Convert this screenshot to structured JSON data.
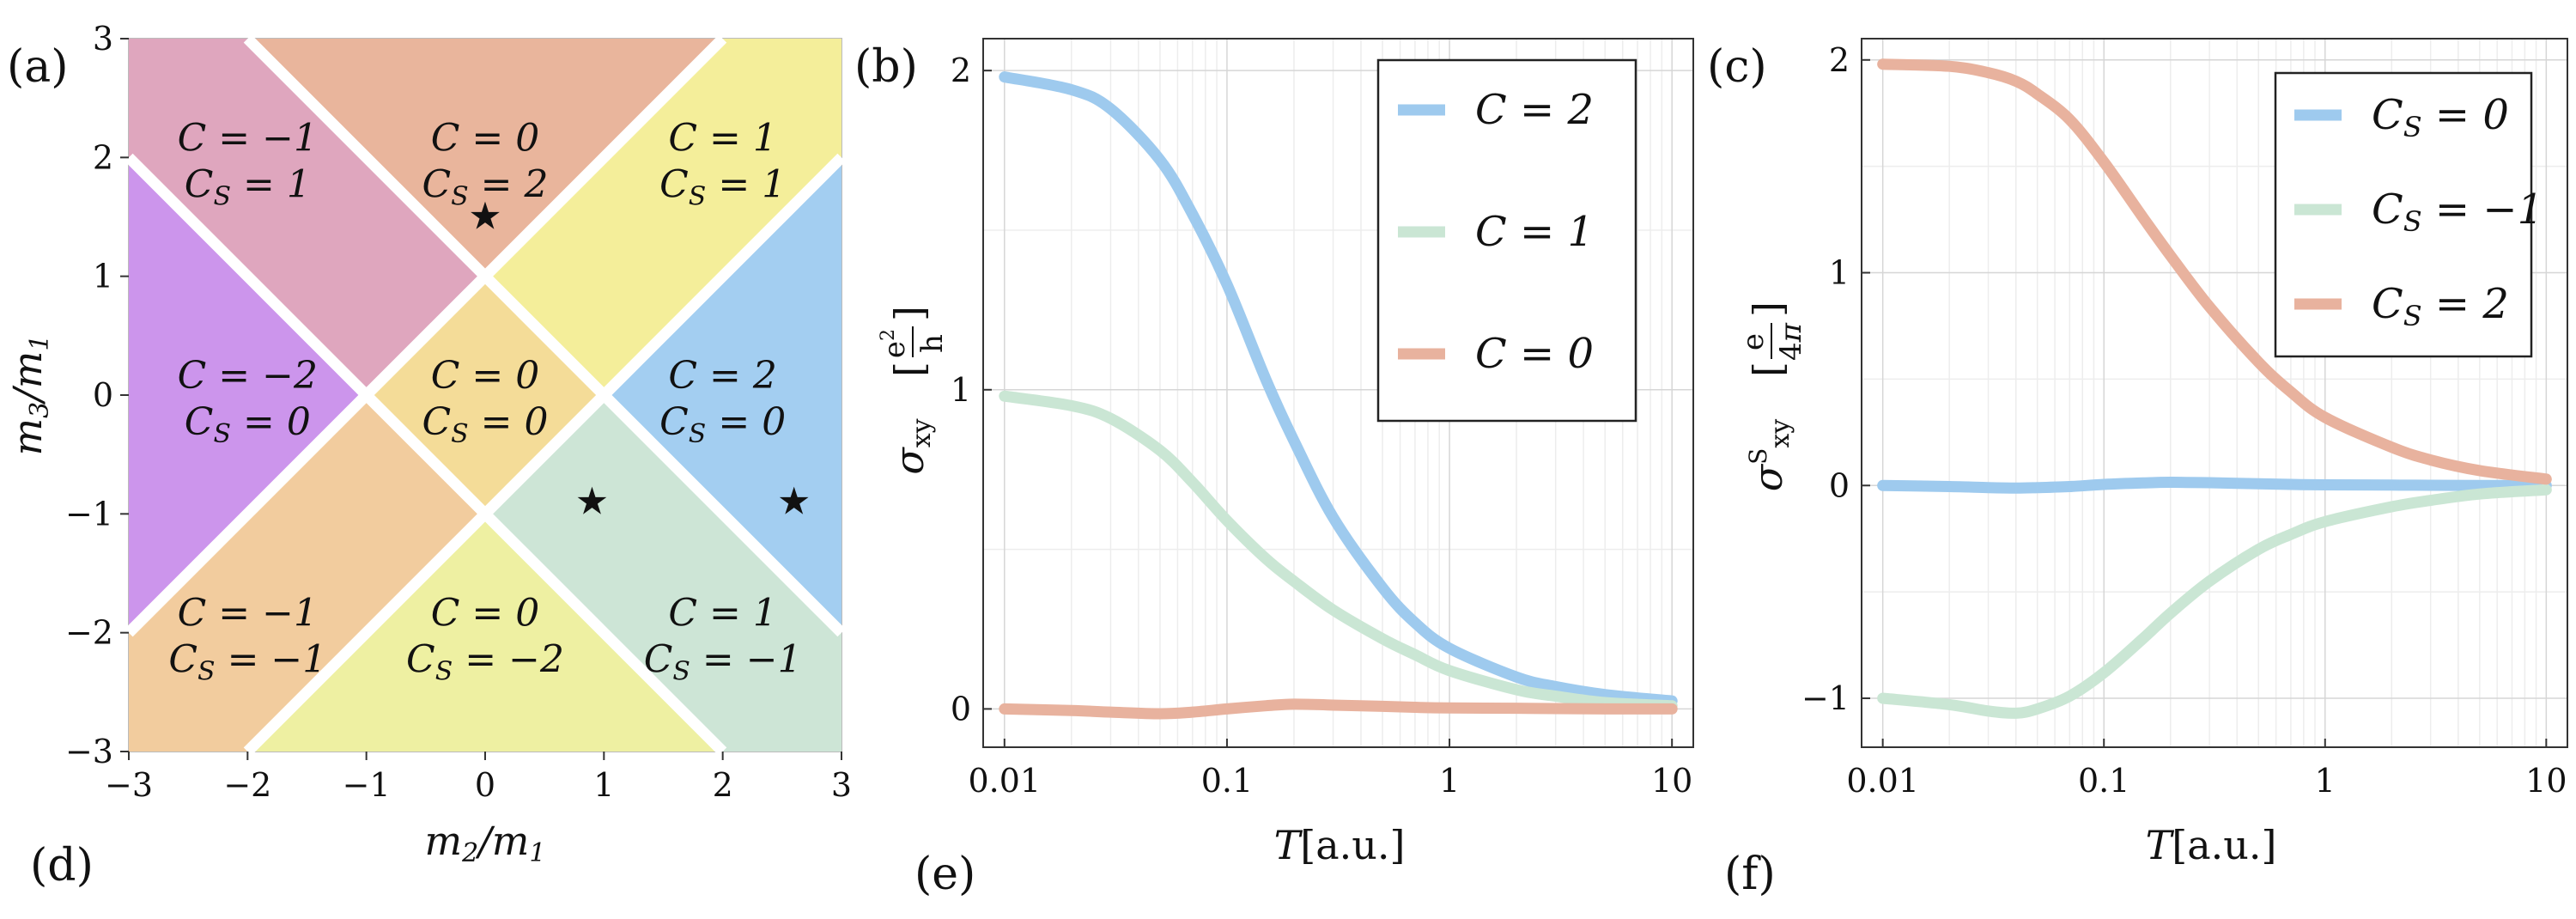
{
  "panel_letters": [
    "(a)",
    "(b)",
    "(c)",
    "(d)",
    "(e)",
    "(f)"
  ],
  "chart_data": [
    {
      "type": "heatmap",
      "panel": "(a)",
      "xlabel": "m2/m1",
      "ylabel": "m3/m1",
      "xlim": [
        -3,
        3
      ],
      "ylim": [
        -3,
        3
      ],
      "xticks": [
        "−3",
        "−2",
        "−1",
        "0",
        "1",
        "2",
        "3"
      ],
      "yticks": [
        "−3",
        "−2",
        "−1",
        "0",
        "1",
        "2",
        "3"
      ],
      "regions": [
        {
          "C": "C = −1",
          "CS": "CS = 1",
          "color": "#DFA6BE",
          "label_at": [
            -2,
            2
          ]
        },
        {
          "C": "C = 0",
          "CS": "CS = 2",
          "color": "#E9B59C",
          "label_at": [
            0,
            2
          ]
        },
        {
          "C": "C = 1",
          "CS": "CS = 1",
          "color": "#F4EE9A",
          "label_at": [
            2,
            2
          ]
        },
        {
          "C": "C = −2",
          "CS": "CS = 0",
          "color": "#CC95EC",
          "label_at": [
            -2,
            0
          ]
        },
        {
          "C": "C = 0",
          "CS": "CS = 0",
          "color": "#F4DC98",
          "label_at": [
            0,
            0
          ]
        },
        {
          "C": "C = 2",
          "CS": "CS = 0",
          "color": "#A3CEF1",
          "label_at": [
            2,
            0
          ]
        },
        {
          "C": "C = −1",
          "CS": "CS = −1",
          "color": "#F2CC9E",
          "label_at": [
            -2,
            -2
          ]
        },
        {
          "C": "C = 0",
          "CS": "CS = −2",
          "color": "#EEF0A2",
          "label_at": [
            0,
            -2
          ]
        },
        {
          "C": "C = 1",
          "CS": "CS = −1",
          "color": "#CDE5D6",
          "label_at": [
            2,
            -2
          ]
        }
      ],
      "markers": [
        {
          "symbol": "★",
          "x": 0,
          "y": 1.5
        },
        {
          "symbol": "★",
          "x": 0.9,
          "y": -0.9
        },
        {
          "symbol": "★",
          "x": 2.6,
          "y": -0.9
        }
      ]
    },
    {
      "type": "line",
      "panel": "(b)",
      "xscale": "log",
      "xlim": [
        0.01,
        10
      ],
      "ylim": [
        -0.12,
        2.1
      ],
      "xticks": [
        "0.01",
        "0.1",
        "1",
        "10"
      ],
      "yticks": [
        "0",
        "1",
        "2"
      ],
      "xlabel": "T[a.u.]",
      "ylabel": "σxy [e²/h]",
      "legend": "top-right",
      "x": [
        0.01,
        0.02,
        0.03,
        0.05,
        0.07,
        0.1,
        0.15,
        0.2,
        0.3,
        0.5,
        0.7,
        1,
        2,
        3,
        5,
        10
      ],
      "series": [
        {
          "name": "C = 2",
          "color": "#9ECAEE",
          "values": [
            1.98,
            1.94,
            1.88,
            1.72,
            1.55,
            1.33,
            1.03,
            0.84,
            0.6,
            0.38,
            0.27,
            0.19,
            0.1,
            0.07,
            0.045,
            0.025
          ]
        },
        {
          "name": "C = 1",
          "color": "#CAE6D4",
          "values": [
            0.98,
            0.95,
            0.91,
            0.81,
            0.71,
            0.59,
            0.47,
            0.4,
            0.31,
            0.22,
            0.17,
            0.12,
            0.06,
            0.04,
            0.02,
            0.01
          ]
        },
        {
          "name": "C = 0",
          "color": "#E8B29E",
          "values": [
            0.0,
            -0.005,
            -0.01,
            -0.015,
            -0.01,
            0.0,
            0.01,
            0.015,
            0.012,
            0.008,
            0.005,
            0.003,
            0.002,
            0.001,
            0.0,
            0.0
          ]
        }
      ]
    },
    {
      "type": "line",
      "panel": "(c)",
      "xscale": "log",
      "xlim": [
        0.01,
        10
      ],
      "ylim": [
        -1.23,
        2.1
      ],
      "xticks": [
        "0.01",
        "0.1",
        "1",
        "10"
      ],
      "yticks": [
        "−1",
        "0",
        "1",
        "2"
      ],
      "xlabel": "T[a.u.]",
      "ylabel": "σSxy [e/4π]",
      "legend": "top-right",
      "x": [
        0.01,
        0.02,
        0.03,
        0.04,
        0.05,
        0.07,
        0.1,
        0.15,
        0.2,
        0.3,
        0.5,
        0.7,
        1,
        2,
        3,
        5,
        10
      ],
      "series": [
        {
          "name": "CS = 0",
          "color": "#9ECAEE",
          "values": [
            0.0,
            -0.005,
            -0.01,
            -0.012,
            -0.01,
            -0.005,
            0.005,
            0.012,
            0.015,
            0.013,
            0.008,
            0.005,
            0.003,
            0.002,
            0.001,
            0.0,
            0.0
          ]
        },
        {
          "name": "CS = −1",
          "color": "#CAE6D4",
          "values": [
            -1.0,
            -1.03,
            -1.06,
            -1.07,
            -1.05,
            -0.99,
            -0.88,
            -0.72,
            -0.6,
            -0.45,
            -0.3,
            -0.23,
            -0.17,
            -0.1,
            -0.07,
            -0.04,
            -0.02
          ]
        },
        {
          "name": "CS = 2",
          "color": "#E8B29E",
          "values": [
            1.98,
            1.97,
            1.94,
            1.9,
            1.84,
            1.72,
            1.52,
            1.26,
            1.08,
            0.84,
            0.58,
            0.44,
            0.32,
            0.18,
            0.12,
            0.07,
            0.03
          ]
        }
      ]
    }
  ]
}
